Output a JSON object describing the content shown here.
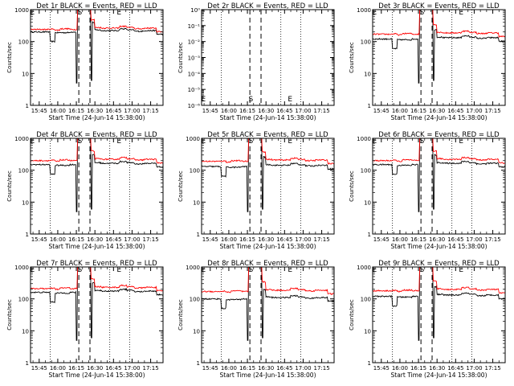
{
  "chart_data": {
    "type": "line",
    "x_ticks": [
      "15:45",
      "16:00",
      "16:15",
      "16:30",
      "16:45",
      "17:00",
      "17:15"
    ],
    "x_tick_minutes": [
      945,
      960,
      975,
      990,
      1005,
      1020,
      1035
    ],
    "x_range_minutes": [
      938,
      1045
    ],
    "xlabel": "Start Time (24-Jun-14 15:38:00)",
    "ylabel": "Counts/sec",
    "y_scale": "log",
    "dotted_vlines_minutes": [
      954,
      1002,
      1018
    ],
    "dashed_vlines_minutes": [
      977,
      986
    ],
    "markers": [
      {
        "label": "E",
        "minute": 939.5
      },
      {
        "label": "S",
        "minute": 977.8
      },
      {
        "label": "E",
        "minute": 1009.5
      }
    ],
    "series_colors": {
      "events": "#000000",
      "lld": "#ff0000"
    },
    "panels": [
      {
        "title": "Det 1r BLACK = Events, RED = LLD",
        "ylim": [
          1,
          1000
        ],
        "y_tick_labels": [
          "1",
          "10",
          "100",
          "1000"
        ],
        "black_level": 200,
        "red_level": 240,
        "has_data": true
      },
      {
        "title": "Det 2r BLACK = Events, RED = LLD",
        "ylim": [
          1e-06,
          1
        ],
        "y_tick_labels": [
          "10⁻⁶",
          "10⁻⁵",
          "10⁻⁴",
          "10⁻³",
          "10⁻²",
          "10⁻¹",
          "10⁰"
        ],
        "black_level": 0,
        "red_level": 0,
        "has_data": false
      },
      {
        "title": "Det 3r BLACK = Events, RED = LLD",
        "ylim": [
          1,
          1000
        ],
        "y_tick_labels": [
          "1",
          "10",
          "100",
          "1000"
        ],
        "black_level": 120,
        "red_level": 170,
        "has_data": true
      },
      {
        "title": "Det 4r BLACK = Events, RED = LLD",
        "ylim": [
          1,
          1000
        ],
        "y_tick_labels": [
          "1",
          "10",
          "100",
          "1000"
        ],
        "black_level": 150,
        "red_level": 200,
        "has_data": true
      },
      {
        "title": "Det 5r BLACK = Events, RED = LLD",
        "ylim": [
          1,
          1000
        ],
        "y_tick_labels": [
          "1",
          "10",
          "100",
          "1000"
        ],
        "black_level": 130,
        "red_level": 190,
        "has_data": true
      },
      {
        "title": "Det 6r BLACK = Events, RED = LLD",
        "ylim": [
          1,
          1000
        ],
        "y_tick_labels": [
          "1",
          "10",
          "100",
          "1000"
        ],
        "black_level": 150,
        "red_level": 200,
        "has_data": true
      },
      {
        "title": "Det 7r BLACK = Events, RED = LLD",
        "ylim": [
          1,
          1000
        ],
        "y_tick_labels": [
          "1",
          "10",
          "100",
          "1000"
        ],
        "black_level": 160,
        "red_level": 210,
        "has_data": true
      },
      {
        "title": "Det 8r BLACK = Events, RED = LLD",
        "ylim": [
          1,
          1000
        ],
        "y_tick_labels": [
          "1",
          "10",
          "100",
          "1000"
        ],
        "black_level": 100,
        "red_level": 170,
        "has_data": true
      },
      {
        "title": "Det 9r BLACK = Events, RED = LLD",
        "ylim": [
          1,
          1000
        ],
        "y_tick_labels": [
          "1",
          "10",
          "100",
          "1000"
        ],
        "black_level": 120,
        "red_level": 180,
        "has_data": true
      }
    ]
  }
}
